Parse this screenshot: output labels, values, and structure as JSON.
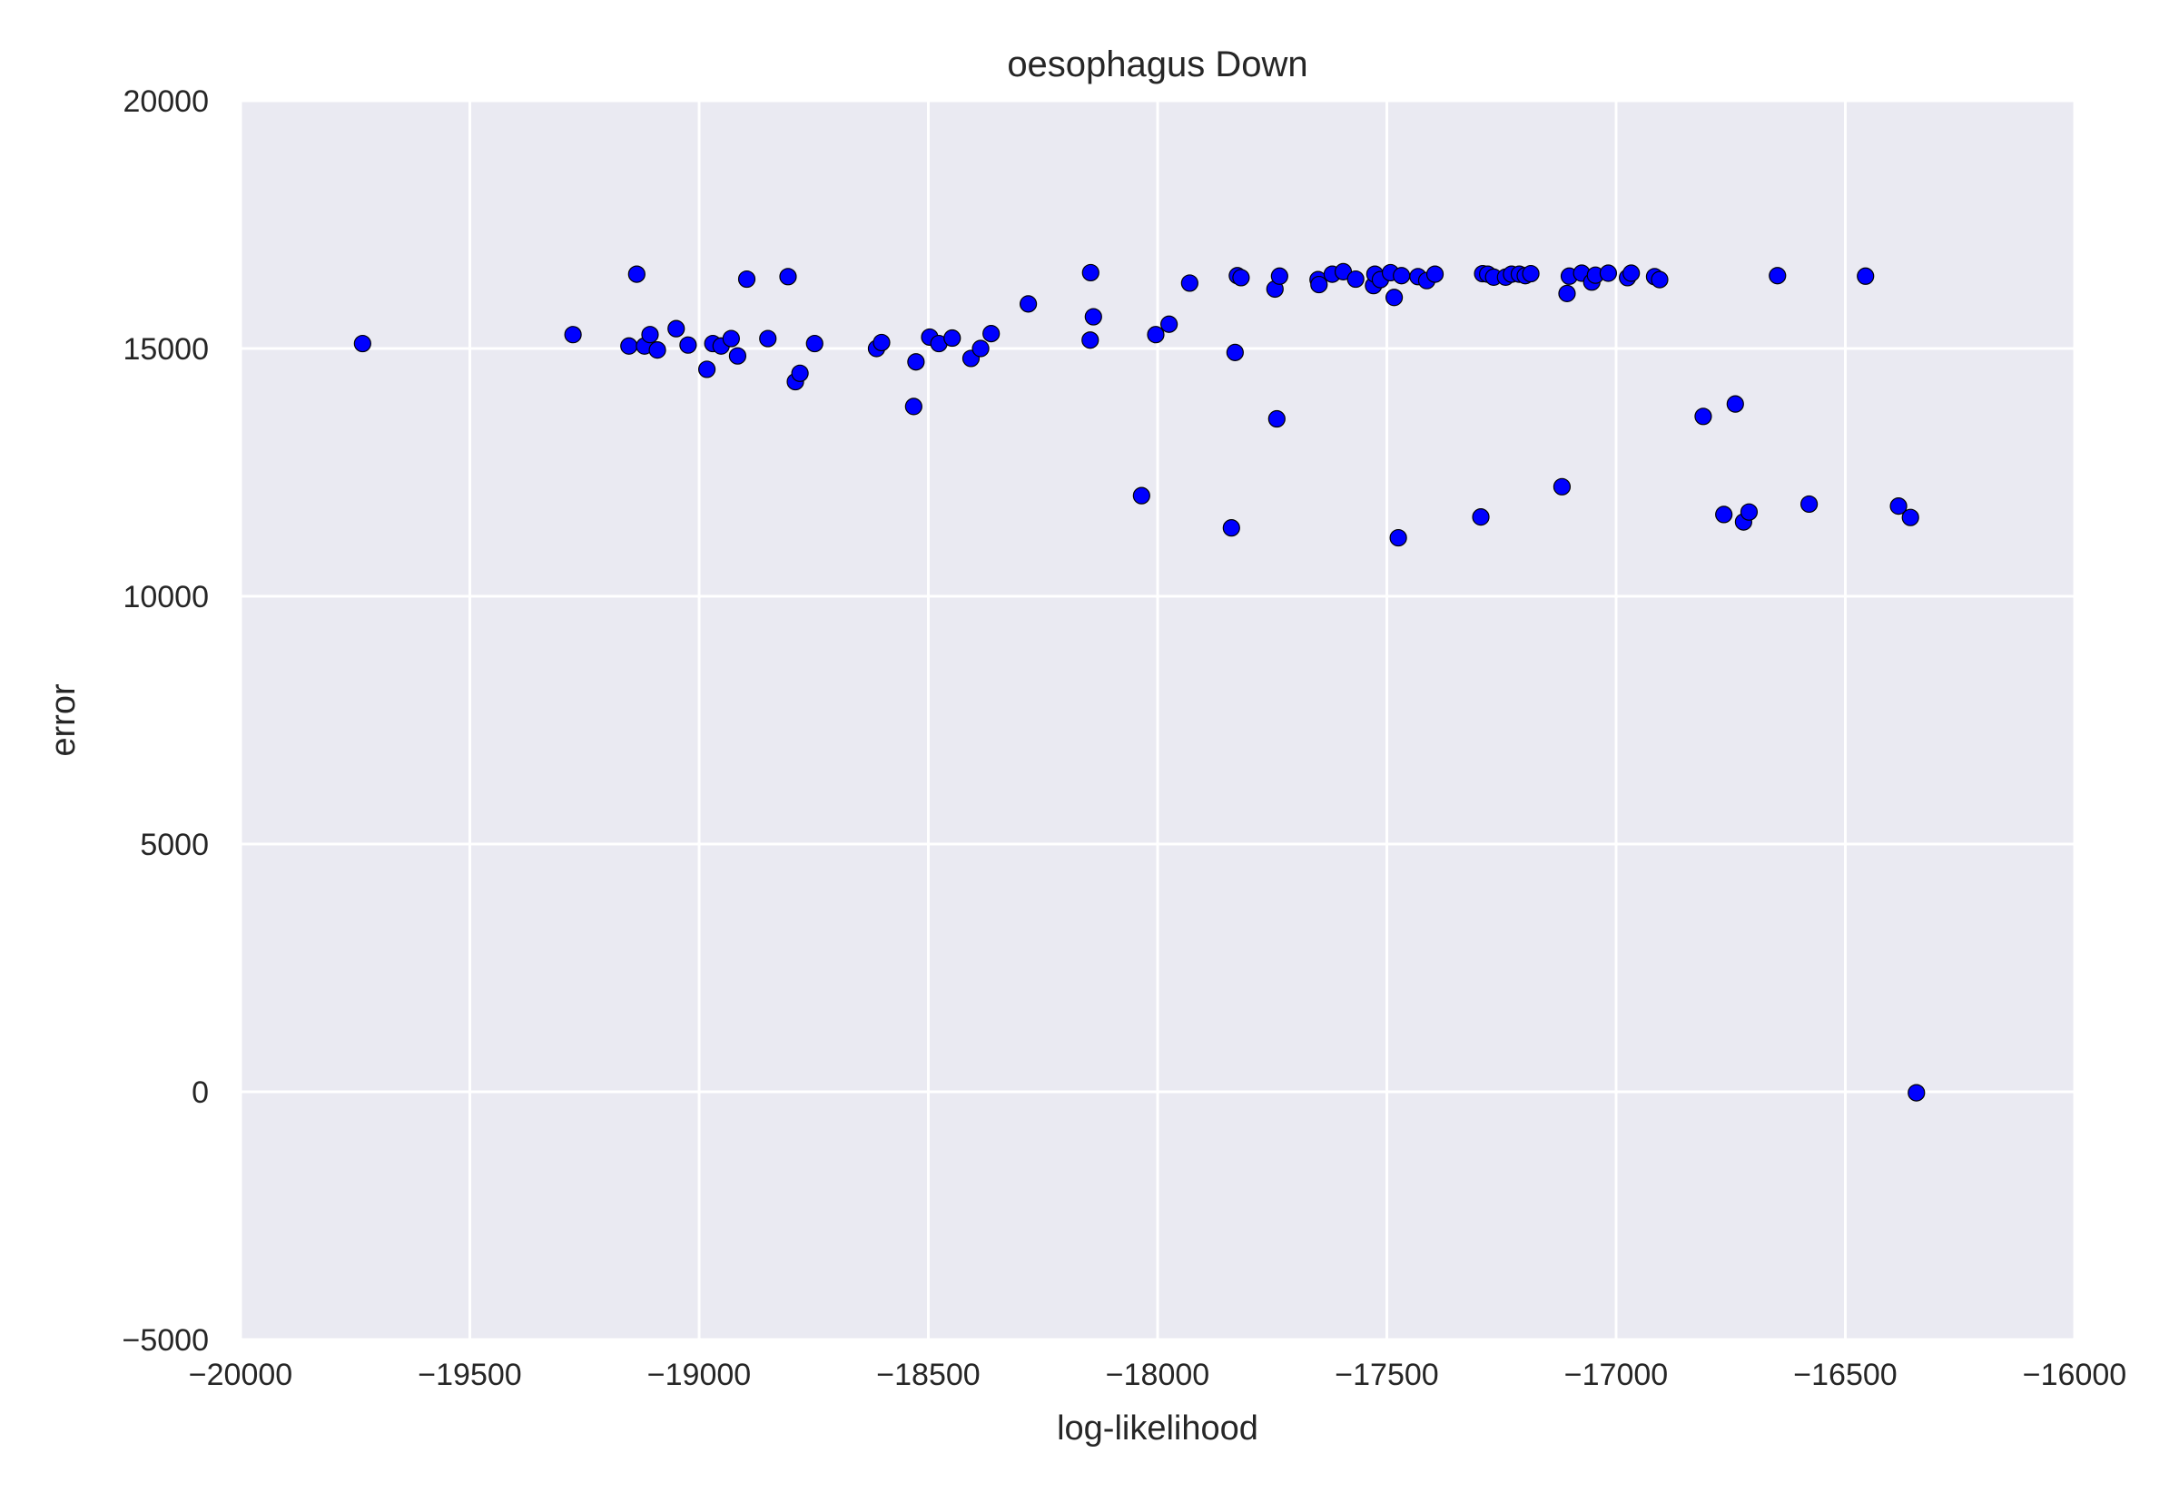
{
  "chart_data": {
    "type": "scatter",
    "title": "oesophagus Down",
    "xlabel": "log-likelihood",
    "ylabel": "error",
    "xlim": [
      -20000,
      -16000
    ],
    "ylim": [
      -5000,
      20000
    ],
    "xticks": [
      -20000,
      -19500,
      -19000,
      -18500,
      -18000,
      -17500,
      -17000,
      -16500,
      -16000
    ],
    "yticks": [
      -5000,
      0,
      5000,
      10000,
      15000,
      20000
    ],
    "xtick_labels": [
      "−20000",
      "−19500",
      "−19000",
      "−18500",
      "−18000",
      "−17500",
      "−17000",
      "−16500",
      "−16000"
    ],
    "ytick_labels": [
      "−5000",
      "0",
      "5000",
      "10000",
      "15000",
      "20000"
    ],
    "grid": true,
    "colors": {
      "background": "#eaeaf2",
      "grid": "#ffffff",
      "marker": "#0000ff",
      "marker_edge": "#000000"
    },
    "series": [
      {
        "points": [
          [
            -19734,
            15100
          ],
          [
            -19275,
            15280
          ],
          [
            -19153,
            15050
          ],
          [
            -19136,
            16500
          ],
          [
            -19119,
            15050
          ],
          [
            -19107,
            15280
          ],
          [
            -19091,
            14970
          ],
          [
            -19050,
            15400
          ],
          [
            -19024,
            15070
          ],
          [
            -18983,
            14580
          ],
          [
            -18970,
            15100
          ],
          [
            -18952,
            15050
          ],
          [
            -18930,
            15200
          ],
          [
            -18916,
            14850
          ],
          [
            -18896,
            16400
          ],
          [
            -18850,
            15200
          ],
          [
            -18806,
            16450
          ],
          [
            -18790,
            14330
          ],
          [
            -18780,
            14500
          ],
          [
            -18748,
            15100
          ],
          [
            -18613,
            15000
          ],
          [
            -18602,
            15120
          ],
          [
            -18532,
            13830
          ],
          [
            -18527,
            14730
          ],
          [
            -18497,
            15230
          ],
          [
            -18477,
            15100
          ],
          [
            -18448,
            15210
          ],
          [
            -18407,
            14800
          ],
          [
            -18386,
            15000
          ],
          [
            -18363,
            15300
          ],
          [
            -18282,
            15900
          ],
          [
            -18147,
            15170
          ],
          [
            -18146,
            16530
          ],
          [
            -18140,
            15640
          ],
          [
            -18035,
            12030
          ],
          [
            -18004,
            15280
          ],
          [
            -17975,
            15490
          ],
          [
            -17930,
            16320
          ],
          [
            -17839,
            11380
          ],
          [
            -17831,
            14920
          ],
          [
            -17826,
            16470
          ],
          [
            -17818,
            16430
          ],
          [
            -17744,
            16200
          ],
          [
            -17740,
            13580
          ],
          [
            -17734,
            16460
          ],
          [
            -17650,
            16390
          ],
          [
            -17648,
            16290
          ],
          [
            -17619,
            16500
          ],
          [
            -17595,
            16550
          ],
          [
            -17568,
            16400
          ],
          [
            -17529,
            16270
          ],
          [
            -17526,
            16500
          ],
          [
            -17514,
            16390
          ],
          [
            -17492,
            16530
          ],
          [
            -17484,
            16030
          ],
          [
            -17475,
            11180
          ],
          [
            -17468,
            16470
          ],
          [
            -17432,
            16450
          ],
          [
            -17413,
            16370
          ],
          [
            -17395,
            16500
          ],
          [
            -17295,
            11600
          ],
          [
            -17291,
            16510
          ],
          [
            -17280,
            16500
          ],
          [
            -17267,
            16440
          ],
          [
            -17241,
            16440
          ],
          [
            -17228,
            16500
          ],
          [
            -17211,
            16500
          ],
          [
            -17198,
            16470
          ],
          [
            -17186,
            16510
          ],
          [
            -17118,
            12210
          ],
          [
            -17107,
            16110
          ],
          [
            -17102,
            16460
          ],
          [
            -17075,
            16520
          ],
          [
            -17053,
            16340
          ],
          [
            -17045,
            16480
          ],
          [
            -17017,
            16520
          ],
          [
            -16975,
            16430
          ],
          [
            -16967,
            16520
          ],
          [
            -16916,
            16450
          ],
          [
            -16905,
            16390
          ],
          [
            -16810,
            13630
          ],
          [
            -16765,
            11650
          ],
          [
            -16740,
            13880
          ],
          [
            -16722,
            11500
          ],
          [
            -16710,
            11700
          ],
          [
            -16648,
            16470
          ],
          [
            -16579,
            11860
          ],
          [
            -16456,
            16460
          ],
          [
            -16384,
            11820
          ],
          [
            -16358,
            11590
          ],
          [
            -16345,
            -20
          ]
        ]
      }
    ]
  }
}
